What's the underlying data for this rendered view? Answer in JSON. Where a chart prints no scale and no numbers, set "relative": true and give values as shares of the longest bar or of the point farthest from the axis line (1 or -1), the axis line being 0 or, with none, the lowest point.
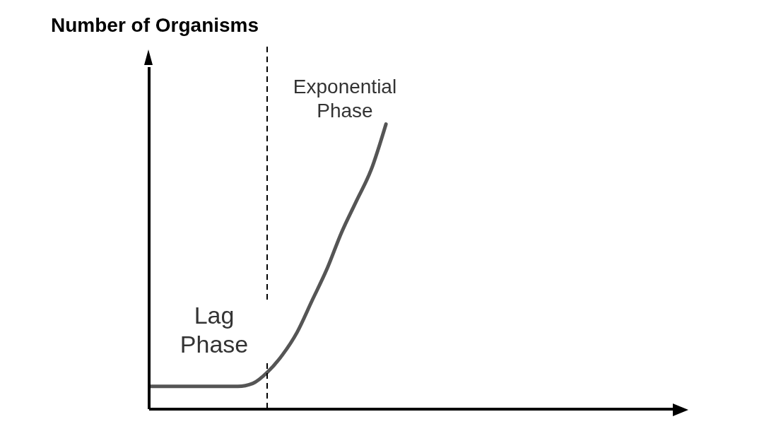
{
  "chart_data": {
    "type": "line",
    "relative": true,
    "ylabel": "Number of Organisms",
    "marker": "none",
    "line_style": "solid",
    "categories": [
      null,
      null,
      null,
      null,
      null,
      null,
      null,
      null,
      null,
      null,
      null,
      null,
      null,
      null,
      null,
      null,
      null,
      null,
      null,
      null,
      null,
      null,
      null,
      null,
      null,
      null,
      null,
      null,
      null,
      null,
      null,
      null,
      null,
      null,
      null,
      null,
      null
    ],
    "series": [
      {
        "color": "#555555",
        "values": [
          0.08,
          0.08,
          0.08,
          0.08,
          0.08,
          0.08,
          0.08,
          0.09,
          0.13,
          0.19,
          0.27,
          0.38,
          0.49,
          0.62,
          0.73,
          0.84,
          1,
          null,
          null,
          null,
          null,
          null,
          null,
          null,
          null,
          null,
          null,
          null,
          null,
          null,
          null,
          null,
          null,
          null,
          null,
          null,
          null
        ]
      }
    ],
    "annotations": [
      "Lag\nPhase",
      "Exponential\nPhase"
    ]
  }
}
